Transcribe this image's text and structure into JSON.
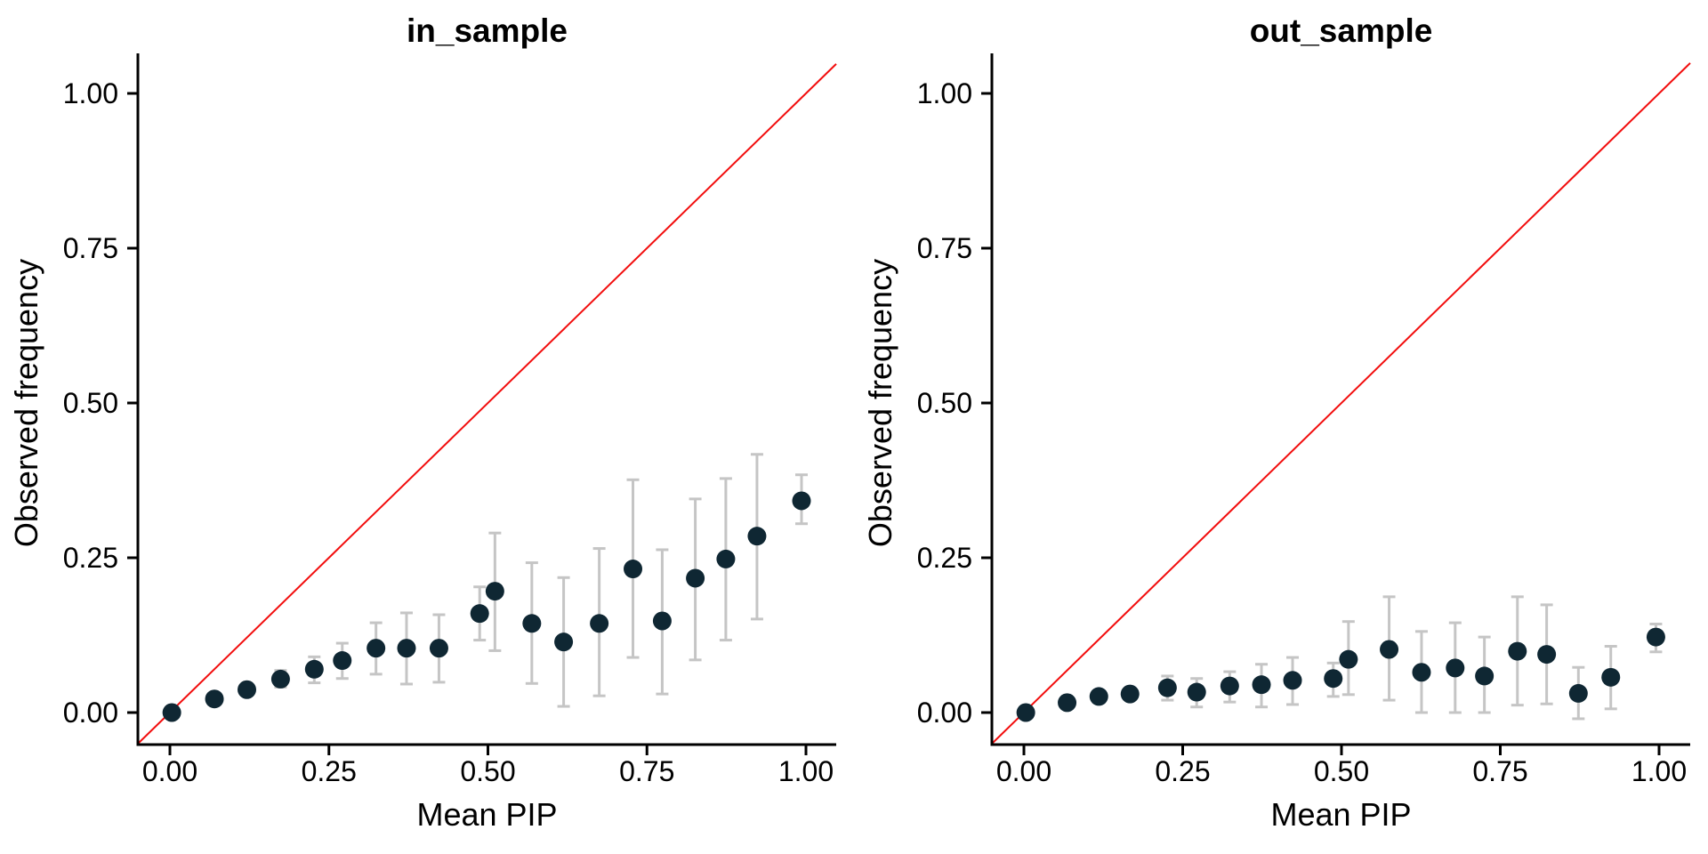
{
  "figure": {
    "background": "#ffffff",
    "colors": {
      "point": "#0f2733",
      "error_bar": "#c5c5c5",
      "identity_line": "#f20d0d",
      "axis": "#000000",
      "tick_label": "#000000"
    },
    "panels": [
      {
        "title": "in_sample",
        "xlabel": "Mean PIP",
        "ylabel": "Observed frequency",
        "x_tick_labels": [
          "0.00",
          "0.25",
          "0.50",
          "0.75",
          "1.00"
        ],
        "y_tick_labels": [
          "0.00",
          "0.25",
          "0.50",
          "0.75",
          "1.00"
        ]
      },
      {
        "title": "out_sample",
        "xlabel": "Mean PIP",
        "ylabel": "Observed frequency",
        "x_tick_labels": [
          "0.00",
          "0.25",
          "0.50",
          "0.75",
          "1.00"
        ],
        "y_tick_labels": [
          "0.00",
          "0.25",
          "0.50",
          "0.75",
          "1.00"
        ]
      }
    ]
  },
  "chart_data": [
    {
      "type": "scatter",
      "title": "in_sample",
      "xlabel": "Mean PIP",
      "ylabel": "Observed frequency",
      "xlim": [
        -0.05,
        1.05
      ],
      "ylim": [
        -0.05,
        1.05
      ],
      "x_ticks": [
        0,
        0.25,
        0.5,
        0.75,
        1
      ],
      "y_ticks": [
        0,
        0.25,
        0.5,
        0.75,
        1
      ],
      "grid": false,
      "legend": "none",
      "reference_line": {
        "kind": "identity",
        "slope": 1,
        "intercept": 0,
        "color": "#f20d0d"
      },
      "series_style": "point-with-vertical-error-bar",
      "points": [
        {
          "x": 0.003,
          "y": 0.0,
          "lo": 0.0,
          "hi": 0.0
        },
        {
          "x": 0.07,
          "y": 0.022,
          "lo": 0.018,
          "hi": 0.027
        },
        {
          "x": 0.121,
          "y": 0.037,
          "lo": 0.031,
          "hi": 0.045
        },
        {
          "x": 0.174,
          "y": 0.054,
          "lo": 0.041,
          "hi": 0.068
        },
        {
          "x": 0.227,
          "y": 0.07,
          "lo": 0.048,
          "hi": 0.09
        },
        {
          "x": 0.271,
          "y": 0.084,
          "lo": 0.055,
          "hi": 0.112
        },
        {
          "x": 0.324,
          "y": 0.104,
          "lo": 0.062,
          "hi": 0.145
        },
        {
          "x": 0.372,
          "y": 0.104,
          "lo": 0.046,
          "hi": 0.161
        },
        {
          "x": 0.423,
          "y": 0.104,
          "lo": 0.049,
          "hi": 0.158
        },
        {
          "x": 0.487,
          "y": 0.16,
          "lo": 0.117,
          "hi": 0.203
        },
        {
          "x": 0.511,
          "y": 0.196,
          "lo": 0.1,
          "hi": 0.29
        },
        {
          "x": 0.569,
          "y": 0.144,
          "lo": 0.047,
          "hi": 0.242
        },
        {
          "x": 0.619,
          "y": 0.114,
          "lo": 0.01,
          "hi": 0.218
        },
        {
          "x": 0.675,
          "y": 0.144,
          "lo": 0.027,
          "hi": 0.265
        },
        {
          "x": 0.728,
          "y": 0.232,
          "lo": 0.089,
          "hi": 0.376
        },
        {
          "x": 0.774,
          "y": 0.148,
          "lo": 0.03,
          "hi": 0.263
        },
        {
          "x": 0.826,
          "y": 0.217,
          "lo": 0.085,
          "hi": 0.345
        },
        {
          "x": 0.874,
          "y": 0.248,
          "lo": 0.117,
          "hi": 0.378
        },
        {
          "x": 0.923,
          "y": 0.285,
          "lo": 0.151,
          "hi": 0.417
        },
        {
          "x": 0.993,
          "y": 0.342,
          "lo": 0.305,
          "hi": 0.384
        }
      ]
    },
    {
      "type": "scatter",
      "title": "out_sample",
      "xlabel": "Mean PIP",
      "ylabel": "Observed frequency",
      "xlim": [
        -0.05,
        1.05
      ],
      "ylim": [
        -0.05,
        1.05
      ],
      "x_ticks": [
        0,
        0.25,
        0.5,
        0.75,
        1
      ],
      "y_ticks": [
        0,
        0.25,
        0.5,
        0.75,
        1
      ],
      "grid": false,
      "legend": "none",
      "reference_line": {
        "kind": "identity",
        "slope": 1,
        "intercept": 0,
        "color": "#f20d0d"
      },
      "series_style": "point-with-vertical-error-bar",
      "points": [
        {
          "x": 0.003,
          "y": 0.0,
          "lo": 0.0,
          "hi": 0.0
        },
        {
          "x": 0.068,
          "y": 0.016,
          "lo": 0.013,
          "hi": 0.02
        },
        {
          "x": 0.118,
          "y": 0.026,
          "lo": 0.02,
          "hi": 0.032
        },
        {
          "x": 0.167,
          "y": 0.03,
          "lo": 0.022,
          "hi": 0.039
        },
        {
          "x": 0.226,
          "y": 0.04,
          "lo": 0.02,
          "hi": 0.059
        },
        {
          "x": 0.272,
          "y": 0.033,
          "lo": 0.009,
          "hi": 0.055
        },
        {
          "x": 0.324,
          "y": 0.043,
          "lo": 0.017,
          "hi": 0.066
        },
        {
          "x": 0.374,
          "y": 0.045,
          "lo": 0.009,
          "hi": 0.078
        },
        {
          "x": 0.423,
          "y": 0.052,
          "lo": 0.013,
          "hi": 0.089
        },
        {
          "x": 0.487,
          "y": 0.055,
          "lo": 0.026,
          "hi": 0.08
        },
        {
          "x": 0.511,
          "y": 0.086,
          "lo": 0.029,
          "hi": 0.147
        },
        {
          "x": 0.575,
          "y": 0.102,
          "lo": 0.02,
          "hi": 0.187
        },
        {
          "x": 0.626,
          "y": 0.065,
          "lo": 0.0,
          "hi": 0.131
        },
        {
          "x": 0.679,
          "y": 0.072,
          "lo": 0.0,
          "hi": 0.145
        },
        {
          "x": 0.725,
          "y": 0.059,
          "lo": 0.0,
          "hi": 0.122
        },
        {
          "x": 0.777,
          "y": 0.099,
          "lo": 0.012,
          "hi": 0.187
        },
        {
          "x": 0.823,
          "y": 0.094,
          "lo": 0.014,
          "hi": 0.174
        },
        {
          "x": 0.873,
          "y": 0.031,
          "lo": -0.01,
          "hi": 0.073
        },
        {
          "x": 0.924,
          "y": 0.057,
          "lo": 0.006,
          "hi": 0.107
        },
        {
          "x": 0.995,
          "y": 0.122,
          "lo": 0.098,
          "hi": 0.143
        }
      ]
    }
  ]
}
